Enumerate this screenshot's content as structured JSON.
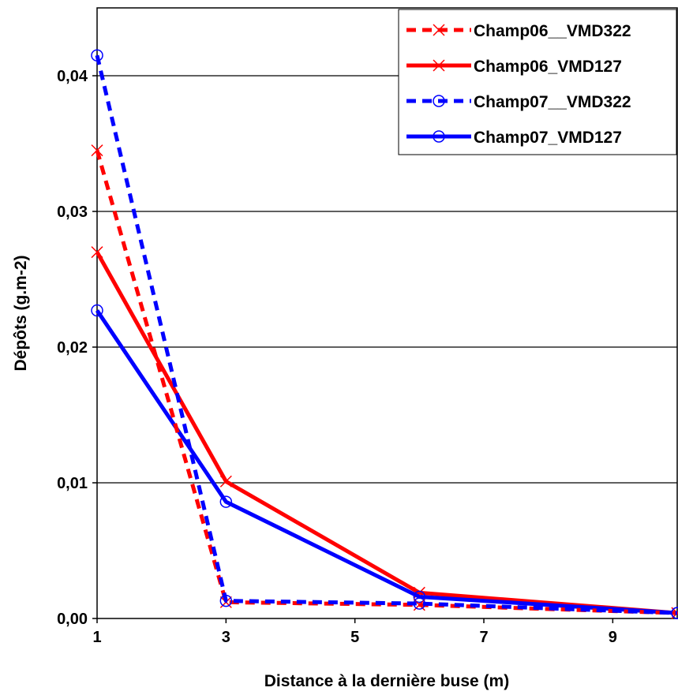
{
  "chart_data": {
    "type": "line",
    "title": "",
    "xlabel": "Distance à la dernière buse (m)",
    "ylabel": "Dépôts (g.m-2)",
    "xlim": [
      1,
      10
    ],
    "ylim": [
      0,
      0.045
    ],
    "xticks": [
      1,
      3,
      5,
      7,
      9
    ],
    "xtick_labels": [
      "1",
      "3",
      "5",
      "7",
      "9"
    ],
    "yticks": [
      0,
      0.01,
      0.02,
      0.03,
      0.04
    ],
    "ytick_labels": [
      "0,00",
      "0,01",
      "0,02",
      "0,03",
      "0,04"
    ],
    "grid": "horizontal",
    "legend_position": "top-right",
    "series": [
      {
        "name": "Champ06__VMD322",
        "x": [
          1,
          3,
          6,
          10
        ],
        "y": [
          0.0345,
          0.0012,
          0.001,
          0.0004
        ],
        "color": "#ff0000",
        "dash": "dashed",
        "marker": "x"
      },
      {
        "name": "Champ06_VMD127",
        "x": [
          1,
          3,
          6,
          10
        ],
        "y": [
          0.027,
          0.0101,
          0.0019,
          0.0004
        ],
        "color": "#ff0000",
        "dash": "solid",
        "marker": "x"
      },
      {
        "name": "Champ07__VMD322",
        "x": [
          1,
          3,
          6,
          10
        ],
        "y": [
          0.0415,
          0.0013,
          0.0011,
          0.0004
        ],
        "color": "#0000ff",
        "dash": "dashed",
        "marker": "o"
      },
      {
        "name": "Champ07_VMD127",
        "x": [
          1,
          3,
          6,
          10
        ],
        "y": [
          0.0227,
          0.0086,
          0.0016,
          0.0004
        ],
        "color": "#0000ff",
        "dash": "solid",
        "marker": "o"
      }
    ]
  }
}
